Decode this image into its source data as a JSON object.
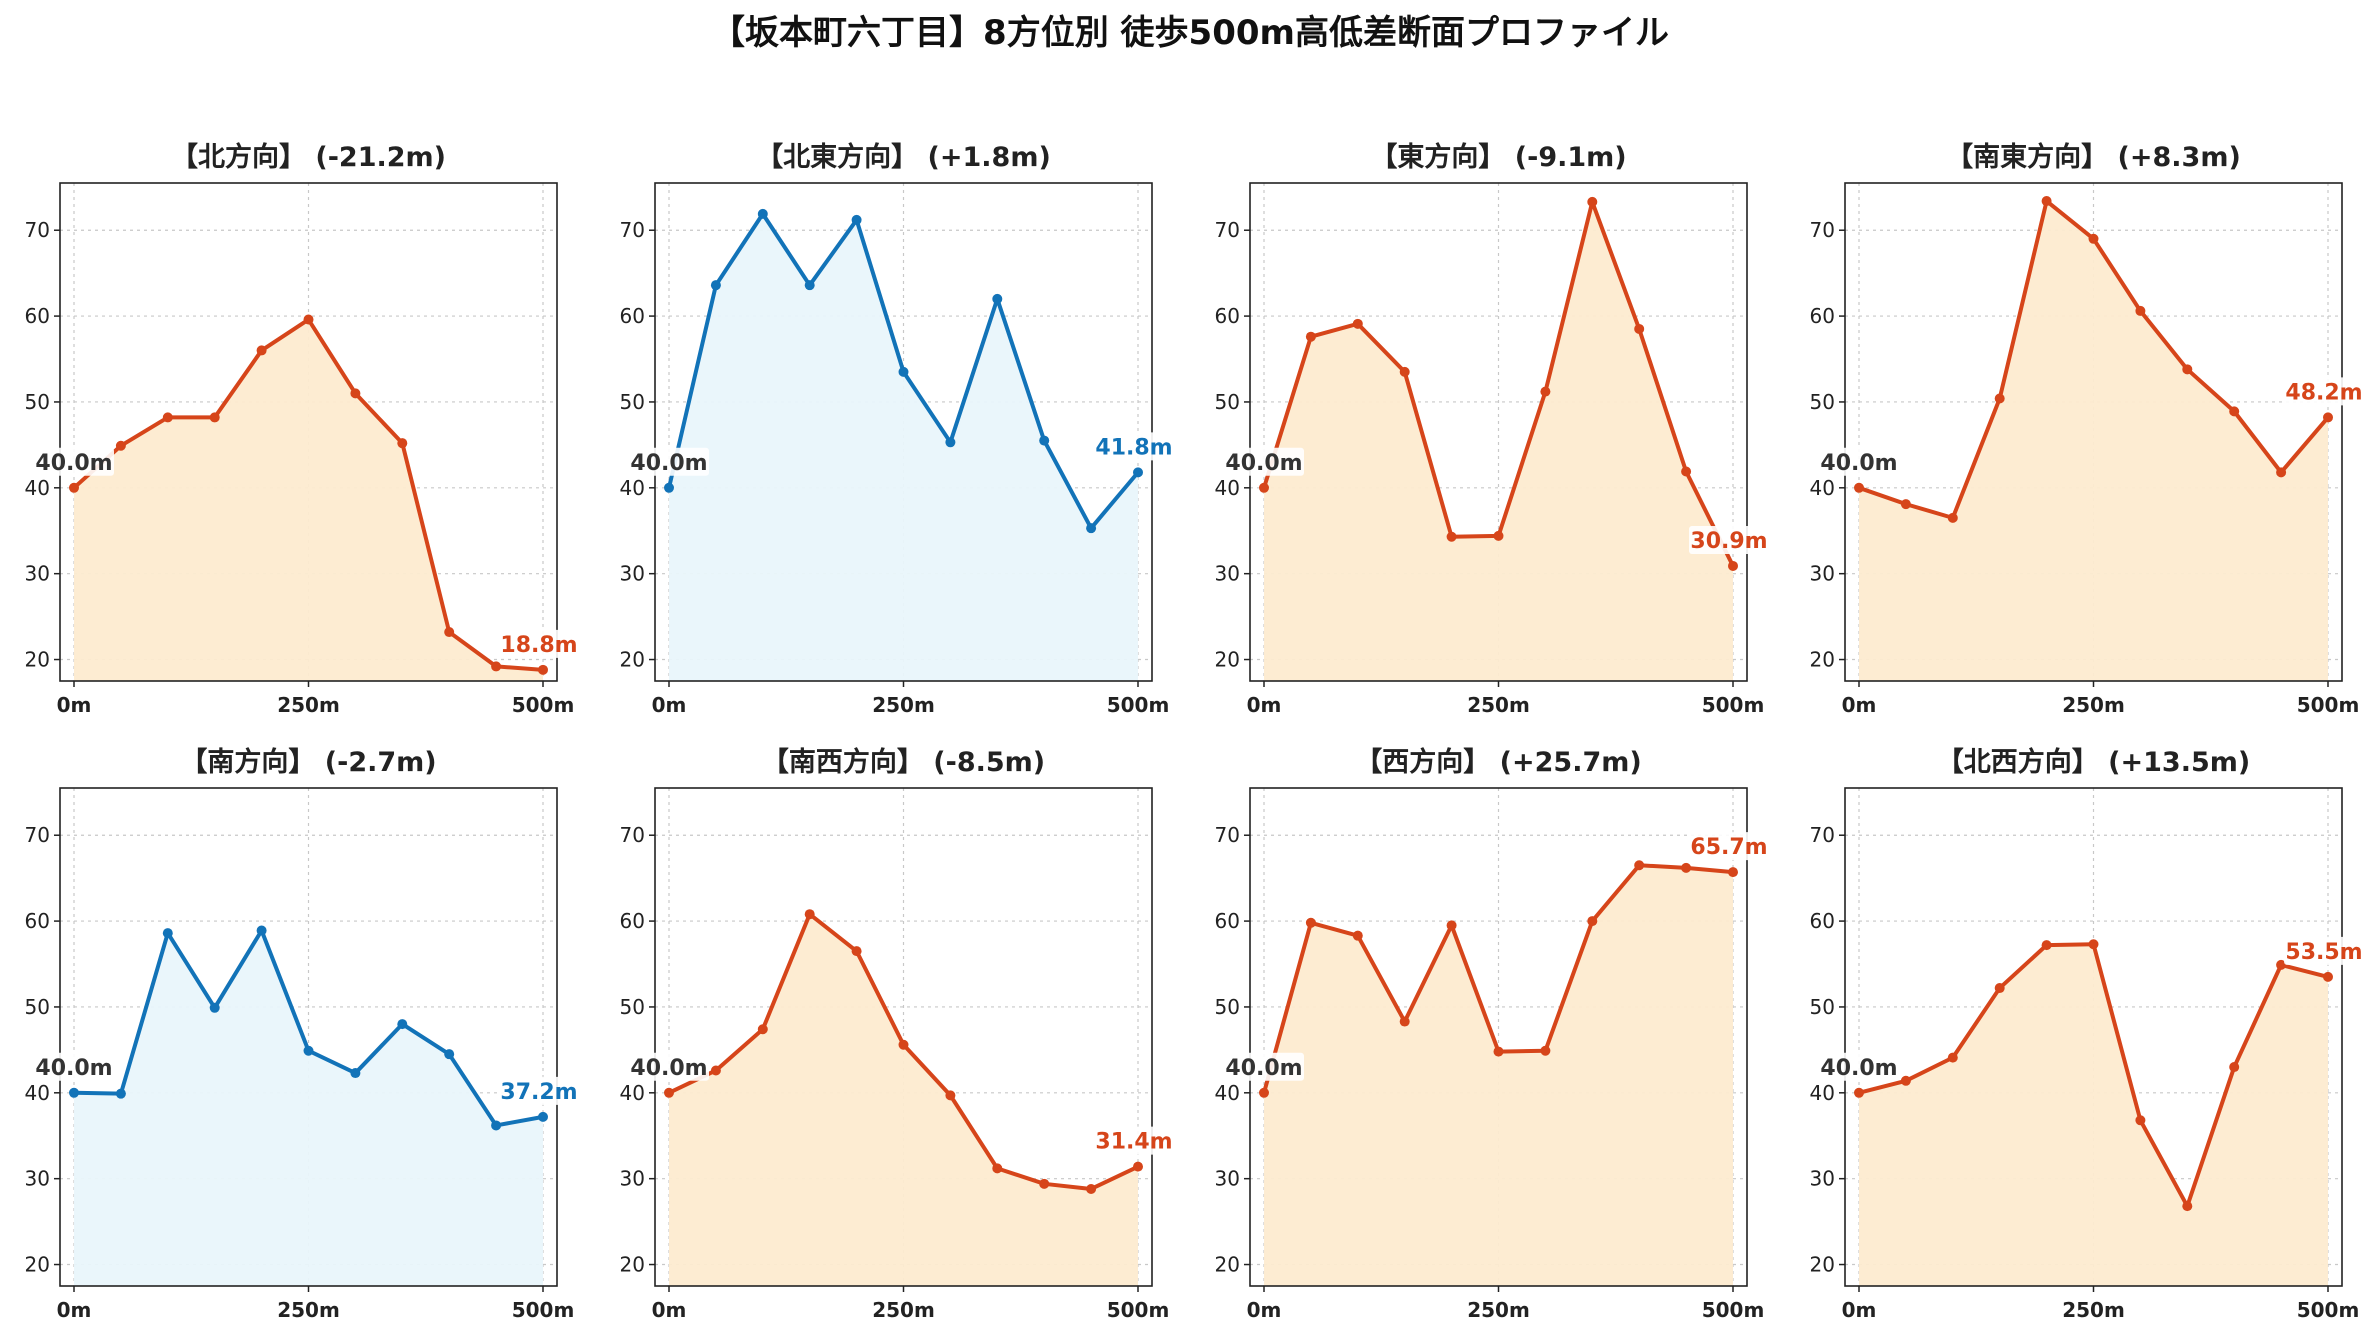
{
  "title": "【坂本町六丁目】8方位別 徒歩500m高低差断面プロファイル",
  "colors": {
    "up": "#d6451a",
    "up_fill": "#fdebd0",
    "down": "#1273b8",
    "down_fill": "#e9f6fb",
    "start_label": "#333333"
  },
  "chart_data": [
    {
      "type": "area",
      "title": "【北方向】 (-21.2m)",
      "color": "up",
      "x_ticks": [
        "0m",
        "250m",
        "500m"
      ],
      "y_ticks": [
        20,
        30,
        40,
        50,
        60,
        70
      ],
      "xlim": [
        0,
        500
      ],
      "ylim": [
        17.5,
        75.5
      ],
      "grid": true,
      "x": [
        0,
        50,
        100,
        150,
        200,
        250,
        300,
        350,
        400,
        450,
        500
      ],
      "values": [
        40.0,
        44.9,
        48.2,
        48.2,
        56.0,
        59.6,
        51.0,
        45.2,
        23.2,
        19.2,
        18.8
      ],
      "start_label": "40.0m",
      "end_label": "18.8m"
    },
    {
      "type": "area",
      "title": "【北東方向】 (+1.8m)",
      "color": "down",
      "x_ticks": [
        "0m",
        "250m",
        "500m"
      ],
      "y_ticks": [
        20,
        30,
        40,
        50,
        60,
        70
      ],
      "xlim": [
        0,
        500
      ],
      "ylim": [
        17.5,
        75.5
      ],
      "grid": true,
      "x": [
        0,
        50,
        100,
        150,
        200,
        250,
        300,
        350,
        400,
        450,
        500
      ],
      "values": [
        40.0,
        63.6,
        71.9,
        63.6,
        71.2,
        53.5,
        45.3,
        62.0,
        45.5,
        35.3,
        41.8
      ],
      "start_label": "40.0m",
      "end_label": "41.8m"
    },
    {
      "type": "area",
      "title": "【東方向】 (-9.1m)",
      "color": "up",
      "x_ticks": [
        "0m",
        "250m",
        "500m"
      ],
      "y_ticks": [
        20,
        30,
        40,
        50,
        60,
        70
      ],
      "xlim": [
        0,
        500
      ],
      "ylim": [
        17.5,
        75.5
      ],
      "grid": true,
      "x": [
        0,
        50,
        100,
        150,
        200,
        250,
        300,
        350,
        400,
        450,
        500
      ],
      "values": [
        40.0,
        57.6,
        59.1,
        53.5,
        34.3,
        34.4,
        51.2,
        73.3,
        58.5,
        41.9,
        30.9
      ],
      "start_label": "40.0m",
      "end_label": "30.9m"
    },
    {
      "type": "area",
      "title": "【南東方向】 (+8.3m)",
      "color": "up",
      "x_ticks": [
        "0m",
        "250m",
        "500m"
      ],
      "y_ticks": [
        20,
        30,
        40,
        50,
        60,
        70
      ],
      "xlim": [
        0,
        500
      ],
      "ylim": [
        17.5,
        75.5
      ],
      "grid": true,
      "x": [
        0,
        50,
        100,
        150,
        200,
        250,
        300,
        350,
        400,
        450,
        500
      ],
      "values": [
        40.0,
        38.1,
        36.5,
        50.4,
        73.4,
        69.0,
        60.6,
        53.8,
        48.9,
        41.8,
        48.2
      ],
      "start_label": "40.0m",
      "end_label": "48.2m"
    },
    {
      "type": "area",
      "title": "【南方向】 (-2.7m)",
      "color": "down",
      "x_ticks": [
        "0m",
        "250m",
        "500m"
      ],
      "y_ticks": [
        20,
        30,
        40,
        50,
        60,
        70
      ],
      "xlim": [
        0,
        500
      ],
      "ylim": [
        17.5,
        75.5
      ],
      "grid": true,
      "x": [
        0,
        50,
        100,
        150,
        200,
        250,
        300,
        350,
        400,
        450,
        500
      ],
      "values": [
        40.0,
        39.9,
        58.6,
        49.9,
        58.9,
        44.9,
        42.3,
        48.0,
        44.5,
        36.2,
        37.2
      ],
      "start_label": "40.0m",
      "end_label": "37.2m"
    },
    {
      "type": "area",
      "title": "【南西方向】 (-8.5m)",
      "color": "up",
      "x_ticks": [
        "0m",
        "250m",
        "500m"
      ],
      "y_ticks": [
        20,
        30,
        40,
        50,
        60,
        70
      ],
      "xlim": [
        0,
        500
      ],
      "ylim": [
        17.5,
        75.5
      ],
      "grid": true,
      "x": [
        0,
        50,
        100,
        150,
        200,
        250,
        300,
        350,
        400,
        450,
        500
      ],
      "values": [
        40.0,
        42.6,
        47.4,
        60.8,
        56.5,
        45.6,
        39.7,
        31.2,
        29.4,
        28.8,
        31.4
      ],
      "start_label": "40.0m",
      "end_label": "31.4m"
    },
    {
      "type": "area",
      "title": "【西方向】 (+25.7m)",
      "color": "up",
      "x_ticks": [
        "0m",
        "250m",
        "500m"
      ],
      "y_ticks": [
        20,
        30,
        40,
        50,
        60,
        70
      ],
      "xlim": [
        0,
        500
      ],
      "ylim": [
        17.5,
        75.5
      ],
      "grid": true,
      "x": [
        0,
        50,
        100,
        150,
        200,
        250,
        300,
        350,
        400,
        450,
        500
      ],
      "values": [
        40.0,
        59.8,
        58.3,
        48.3,
        59.5,
        44.8,
        44.9,
        60.0,
        66.5,
        66.2,
        65.7
      ],
      "start_label": "40.0m",
      "end_label": "65.7m"
    },
    {
      "type": "area",
      "title": "【北西方向】 (+13.5m)",
      "color": "up",
      "x_ticks": [
        "0m",
        "250m",
        "500m"
      ],
      "y_ticks": [
        20,
        30,
        40,
        50,
        60,
        70
      ],
      "xlim": [
        0,
        500
      ],
      "ylim": [
        17.5,
        75.5
      ],
      "grid": true,
      "x": [
        0,
        50,
        100,
        150,
        200,
        250,
        300,
        350,
        400,
        450,
        500
      ],
      "values": [
        40.0,
        41.4,
        44.1,
        52.2,
        57.2,
        57.3,
        36.8,
        26.8,
        43.0,
        54.9,
        53.5
      ],
      "start_label": "40.0m",
      "end_label": "53.5m"
    }
  ]
}
